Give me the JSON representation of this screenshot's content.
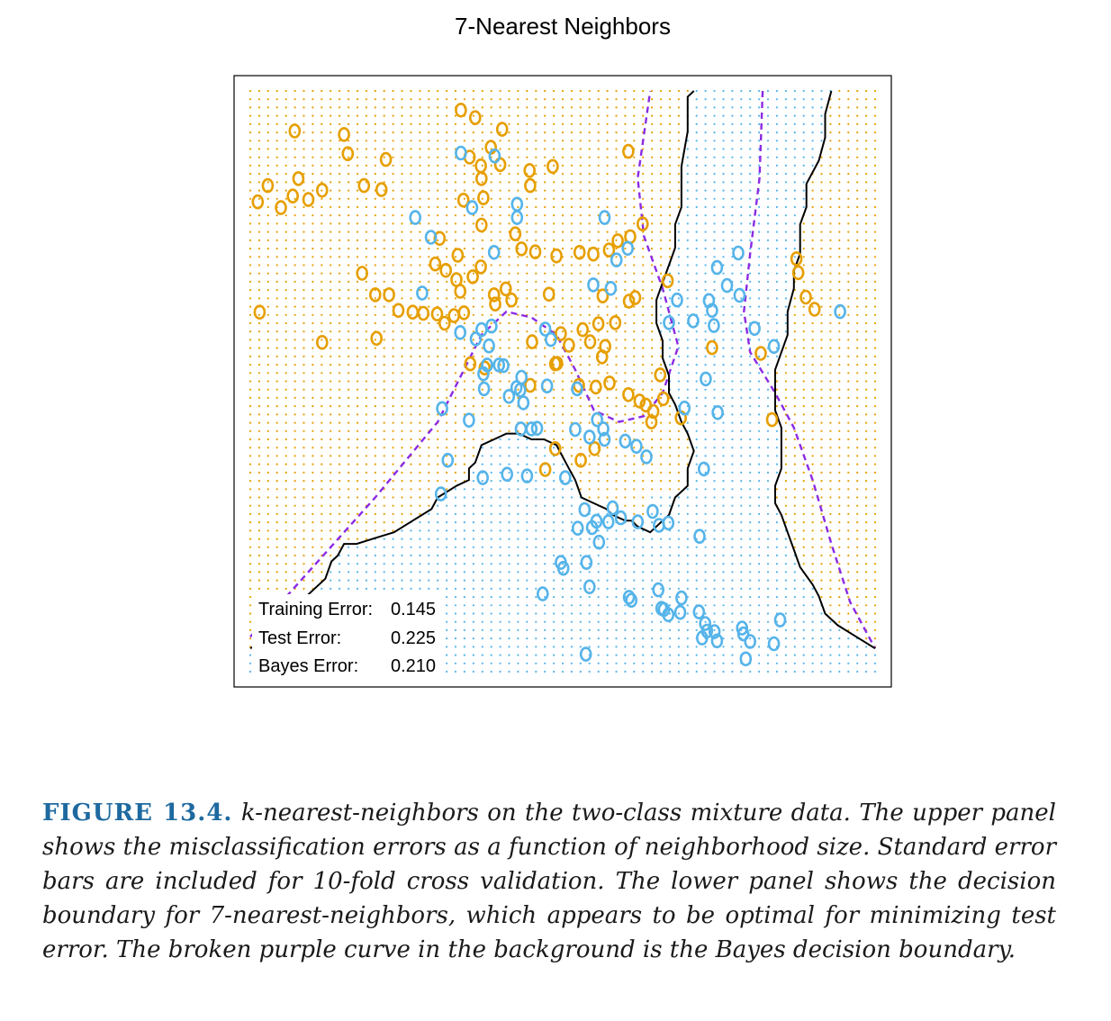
{
  "chart_data": {
    "type": "scatter",
    "title": "7-Nearest Neighbors",
    "xlabel": "",
    "ylabel": "",
    "classes": [
      {
        "name": "orange",
        "color": "#E69F00"
      },
      {
        "name": "blue",
        "color": "#56B4E9"
      }
    ],
    "bayes_boundary_color": "#8A2BE2",
    "knn_boundary_color": "#000000",
    "grid_shading": "class-colored dot grid",
    "points": [
      {
        "x": 0.077,
        "y": 0.849,
        "c": 0
      },
      {
        "x": 0.049,
        "y": 0.799,
        "c": 0
      },
      {
        "x": 0.012,
        "y": 0.809,
        "c": 0
      },
      {
        "x": 0.068,
        "y": 0.819,
        "c": 0
      },
      {
        "x": 0.093,
        "y": 0.813,
        "c": 0
      },
      {
        "x": 0.115,
        "y": 0.829,
        "c": 0
      },
      {
        "x": 0.028,
        "y": 0.837,
        "c": 0
      },
      {
        "x": 0.071,
        "y": 0.931,
        "c": 0
      },
      {
        "x": 0.15,
        "y": 0.925,
        "c": 0
      },
      {
        "x": 0.156,
        "y": 0.892,
        "c": 0
      },
      {
        "x": 0.217,
        "y": 0.882,
        "c": 0
      },
      {
        "x": 0.21,
        "y": 0.83,
        "c": 0
      },
      {
        "x": 0.182,
        "y": 0.837,
        "c": 0
      },
      {
        "x": 0.015,
        "y": 0.619,
        "c": 0
      },
      {
        "x": 0.115,
        "y": 0.567,
        "c": 0
      },
      {
        "x": 0.202,
        "y": 0.574,
        "c": 0
      },
      {
        "x": 0.2,
        "y": 0.649,
        "c": 0
      },
      {
        "x": 0.179,
        "y": 0.686,
        "c": 0
      },
      {
        "x": 0.337,
        "y": 0.967,
        "c": 0
      },
      {
        "x": 0.36,
        "y": 0.954,
        "c": 0
      },
      {
        "x": 0.403,
        "y": 0.934,
        "c": 0
      },
      {
        "x": 0.385,
        "y": 0.903,
        "c": 0
      },
      {
        "x": 0.351,
        "y": 0.886,
        "c": 0
      },
      {
        "x": 0.369,
        "y": 0.871,
        "c": 0
      },
      {
        "x": 0.4,
        "y": 0.873,
        "c": 0
      },
      {
        "x": 0.37,
        "y": 0.849,
        "c": 0
      },
      {
        "x": 0.447,
        "y": 0.863,
        "c": 0
      },
      {
        "x": 0.484,
        "y": 0.87,
        "c": 0
      },
      {
        "x": 0.448,
        "y": 0.837,
        "c": 0
      },
      {
        "x": 0.341,
        "y": 0.812,
        "c": 0
      },
      {
        "x": 0.373,
        "y": 0.816,
        "c": 0
      },
      {
        "x": 0.605,
        "y": 0.896,
        "c": 0
      },
      {
        "x": 0.37,
        "y": 0.769,
        "c": 0
      },
      {
        "x": 0.303,
        "y": 0.746,
        "c": 0
      },
      {
        "x": 0.424,
        "y": 0.754,
        "c": 0
      },
      {
        "x": 0.434,
        "y": 0.728,
        "c": 0
      },
      {
        "x": 0.456,
        "y": 0.723,
        "c": 0
      },
      {
        "x": 0.49,
        "y": 0.716,
        "c": 0
      },
      {
        "x": 0.527,
        "y": 0.722,
        "c": 0
      },
      {
        "x": 0.549,
        "y": 0.719,
        "c": 0
      },
      {
        "x": 0.574,
        "y": 0.726,
        "c": 0
      },
      {
        "x": 0.588,
        "y": 0.742,
        "c": 0
      },
      {
        "x": 0.608,
        "y": 0.749,
        "c": 0
      },
      {
        "x": 0.628,
        "y": 0.771,
        "c": 0
      },
      {
        "x": 0.332,
        "y": 0.717,
        "c": 0
      },
      {
        "x": 0.369,
        "y": 0.697,
        "c": 0
      },
      {
        "x": 0.356,
        "y": 0.68,
        "c": 0
      },
      {
        "x": 0.33,
        "y": 0.675,
        "c": 0
      },
      {
        "x": 0.313,
        "y": 0.691,
        "c": 0
      },
      {
        "x": 0.296,
        "y": 0.702,
        "c": 0
      },
      {
        "x": 0.336,
        "y": 0.655,
        "c": 0
      },
      {
        "x": 0.39,
        "y": 0.649,
        "c": 0
      },
      {
        "x": 0.409,
        "y": 0.659,
        "c": 0
      },
      {
        "x": 0.418,
        "y": 0.64,
        "c": 0
      },
      {
        "x": 0.392,
        "y": 0.633,
        "c": 0
      },
      {
        "x": 0.478,
        "y": 0.65,
        "c": 0
      },
      {
        "x": 0.564,
        "y": 0.647,
        "c": 0
      },
      {
        "x": 0.606,
        "y": 0.638,
        "c": 0
      },
      {
        "x": 0.616,
        "y": 0.644,
        "c": 0
      },
      {
        "x": 0.668,
        "y": 0.673,
        "c": 0
      },
      {
        "x": 0.222,
        "y": 0.649,
        "c": 0
      },
      {
        "x": 0.237,
        "y": 0.622,
        "c": 0
      },
      {
        "x": 0.26,
        "y": 0.619,
        "c": 0
      },
      {
        "x": 0.277,
        "y": 0.617,
        "c": 0
      },
      {
        "x": 0.299,
        "y": 0.616,
        "c": 0
      },
      {
        "x": 0.326,
        "y": 0.613,
        "c": 0
      },
      {
        "x": 0.342,
        "y": 0.618,
        "c": 0
      },
      {
        "x": 0.311,
        "y": 0.6,
        "c": 0
      },
      {
        "x": 0.352,
        "y": 0.53,
        "c": 0
      },
      {
        "x": 0.375,
        "y": 0.523,
        "c": 0
      },
      {
        "x": 0.451,
        "y": 0.568,
        "c": 0
      },
      {
        "x": 0.532,
        "y": 0.589,
        "c": 0
      },
      {
        "x": 0.557,
        "y": 0.599,
        "c": 0
      },
      {
        "x": 0.584,
        "y": 0.601,
        "c": 0
      },
      {
        "x": 0.568,
        "y": 0.56,
        "c": 0
      },
      {
        "x": 0.544,
        "y": 0.568,
        "c": 0
      },
      {
        "x": 0.51,
        "y": 0.562,
        "c": 0
      },
      {
        "x": 0.497,
        "y": 0.582,
        "c": 0
      },
      {
        "x": 0.488,
        "y": 0.53,
        "c": 0
      },
      {
        "x": 0.448,
        "y": 0.493,
        "c": 0
      },
      {
        "x": 0.491,
        "y": 0.531,
        "c": 0
      },
      {
        "x": 0.563,
        "y": 0.542,
        "c": 0
      },
      {
        "x": 0.575,
        "y": 0.497,
        "c": 0
      },
      {
        "x": 0.605,
        "y": 0.477,
        "c": 0
      },
      {
        "x": 0.623,
        "y": 0.466,
        "c": 0
      },
      {
        "x": 0.656,
        "y": 0.511,
        "c": 0
      },
      {
        "x": 0.661,
        "y": 0.47,
        "c": 0
      },
      {
        "x": 0.645,
        "y": 0.448,
        "c": 0
      },
      {
        "x": 0.633,
        "y": 0.459,
        "c": 0
      },
      {
        "x": 0.553,
        "y": 0.49,
        "c": 0
      },
      {
        "x": 0.526,
        "y": 0.493,
        "c": 0
      },
      {
        "x": 0.642,
        "y": 0.43,
        "c": 0
      },
      {
        "x": 0.689,
        "y": 0.437,
        "c": 0
      },
      {
        "x": 0.739,
        "y": 0.558,
        "c": 0
      },
      {
        "x": 0.551,
        "y": 0.384,
        "c": 0
      },
      {
        "x": 0.529,
        "y": 0.364,
        "c": 0
      },
      {
        "x": 0.488,
        "y": 0.384,
        "c": 0
      },
      {
        "x": 0.472,
        "y": 0.348,
        "c": 0
      },
      {
        "x": 0.835,
        "y": 0.434,
        "c": 0
      },
      {
        "x": 0.817,
        "y": 0.548,
        "c": 0
      },
      {
        "x": 0.874,
        "y": 0.711,
        "c": 0
      },
      {
        "x": 0.877,
        "y": 0.687,
        "c": 0
      },
      {
        "x": 0.889,
        "y": 0.645,
        "c": 0
      },
      {
        "x": 0.903,
        "y": 0.624,
        "c": 0
      },
      {
        "x": 0.337,
        "y": 0.893,
        "c": 1
      },
      {
        "x": 0.391,
        "y": 0.888,
        "c": 1
      },
      {
        "x": 0.427,
        "y": 0.805,
        "c": 1
      },
      {
        "x": 0.355,
        "y": 0.799,
        "c": 1
      },
      {
        "x": 0.264,
        "y": 0.782,
        "c": 1
      },
      {
        "x": 0.289,
        "y": 0.748,
        "c": 1
      },
      {
        "x": 0.39,
        "y": 0.722,
        "c": 1
      },
      {
        "x": 0.427,
        "y": 0.782,
        "c": 1
      },
      {
        "x": 0.567,
        "y": 0.782,
        "c": 1
      },
      {
        "x": 0.604,
        "y": 0.729,
        "c": 1
      },
      {
        "x": 0.781,
        "y": 0.721,
        "c": 1
      },
      {
        "x": 0.747,
        "y": 0.696,
        "c": 1
      },
      {
        "x": 0.763,
        "y": 0.665,
        "c": 1
      },
      {
        "x": 0.783,
        "y": 0.648,
        "c": 1
      },
      {
        "x": 0.734,
        "y": 0.639,
        "c": 1
      },
      {
        "x": 0.683,
        "y": 0.64,
        "c": 1
      },
      {
        "x": 0.739,
        "y": 0.622,
        "c": 1
      },
      {
        "x": 0.67,
        "y": 0.601,
        "c": 1
      },
      {
        "x": 0.709,
        "y": 0.604,
        "c": 1
      },
      {
        "x": 0.742,
        "y": 0.596,
        "c": 1
      },
      {
        "x": 0.807,
        "y": 0.591,
        "c": 1
      },
      {
        "x": 0.838,
        "y": 0.56,
        "c": 1
      },
      {
        "x": 0.944,
        "y": 0.62,
        "c": 1
      },
      {
        "x": 0.577,
        "y": 0.66,
        "c": 1
      },
      {
        "x": 0.549,
        "y": 0.666,
        "c": 1
      },
      {
        "x": 0.586,
        "y": 0.709,
        "c": 1
      },
      {
        "x": 0.275,
        "y": 0.652,
        "c": 1
      },
      {
        "x": 0.336,
        "y": 0.584,
        "c": 1
      },
      {
        "x": 0.37,
        "y": 0.589,
        "c": 1
      },
      {
        "x": 0.386,
        "y": 0.595,
        "c": 1
      },
      {
        "x": 0.361,
        "y": 0.573,
        "c": 1
      },
      {
        "x": 0.382,
        "y": 0.561,
        "c": 1
      },
      {
        "x": 0.472,
        "y": 0.59,
        "c": 1
      },
      {
        "x": 0.481,
        "y": 0.572,
        "c": 1
      },
      {
        "x": 0.373,
        "y": 0.513,
        "c": 1
      },
      {
        "x": 0.379,
        "y": 0.528,
        "c": 1
      },
      {
        "x": 0.398,
        "y": 0.528,
        "c": 1
      },
      {
        "x": 0.405,
        "y": 0.527,
        "c": 1
      },
      {
        "x": 0.434,
        "y": 0.507,
        "c": 1
      },
      {
        "x": 0.426,
        "y": 0.489,
        "c": 1
      },
      {
        "x": 0.414,
        "y": 0.474,
        "c": 1
      },
      {
        "x": 0.432,
        "y": 0.485,
        "c": 1
      },
      {
        "x": 0.437,
        "y": 0.463,
        "c": 1
      },
      {
        "x": 0.374,
        "y": 0.487,
        "c": 1
      },
      {
        "x": 0.475,
        "y": 0.492,
        "c": 1
      },
      {
        "x": 0.523,
        "y": 0.487,
        "c": 1
      },
      {
        "x": 0.307,
        "y": 0.453,
        "c": 1
      },
      {
        "x": 0.35,
        "y": 0.433,
        "c": 1
      },
      {
        "x": 0.433,
        "y": 0.418,
        "c": 1
      },
      {
        "x": 0.45,
        "y": 0.418,
        "c": 1
      },
      {
        "x": 0.459,
        "y": 0.419,
        "c": 1
      },
      {
        "x": 0.52,
        "y": 0.417,
        "c": 1
      },
      {
        "x": 0.543,
        "y": 0.404,
        "c": 1
      },
      {
        "x": 0.567,
        "y": 0.4,
        "c": 1
      },
      {
        "x": 0.6,
        "y": 0.397,
        "c": 1
      },
      {
        "x": 0.555,
        "y": 0.434,
        "c": 1
      },
      {
        "x": 0.565,
        "y": 0.418,
        "c": 1
      },
      {
        "x": 0.618,
        "y": 0.388,
        "c": 1
      },
      {
        "x": 0.634,
        "y": 0.37,
        "c": 1
      },
      {
        "x": 0.316,
        "y": 0.364,
        "c": 1
      },
      {
        "x": 0.372,
        "y": 0.334,
        "c": 1
      },
      {
        "x": 0.411,
        "y": 0.34,
        "c": 1
      },
      {
        "x": 0.443,
        "y": 0.337,
        "c": 1
      },
      {
        "x": 0.504,
        "y": 0.334,
        "c": 1
      },
      {
        "x": 0.695,
        "y": 0.454,
        "c": 1
      },
      {
        "x": 0.748,
        "y": 0.446,
        "c": 1
      },
      {
        "x": 0.729,
        "y": 0.504,
        "c": 1
      },
      {
        "x": 0.726,
        "y": 0.349,
        "c": 1
      },
      {
        "x": 0.305,
        "y": 0.306,
        "c": 1
      },
      {
        "x": 0.58,
        "y": 0.282,
        "c": 1
      },
      {
        "x": 0.593,
        "y": 0.265,
        "c": 1
      },
      {
        "x": 0.535,
        "y": 0.279,
        "c": 1
      },
      {
        "x": 0.554,
        "y": 0.259,
        "c": 1
      },
      {
        "x": 0.573,
        "y": 0.258,
        "c": 1
      },
      {
        "x": 0.524,
        "y": 0.247,
        "c": 1
      },
      {
        "x": 0.547,
        "y": 0.248,
        "c": 1
      },
      {
        "x": 0.558,
        "y": 0.223,
        "c": 1
      },
      {
        "x": 0.62,
        "y": 0.258,
        "c": 1
      },
      {
        "x": 0.644,
        "y": 0.276,
        "c": 1
      },
      {
        "x": 0.654,
        "y": 0.252,
        "c": 1
      },
      {
        "x": 0.669,
        "y": 0.256,
        "c": 1
      },
      {
        "x": 0.719,
        "y": 0.233,
        "c": 1
      },
      {
        "x": 0.538,
        "y": 0.188,
        "c": 1
      },
      {
        "x": 0.497,
        "y": 0.188,
        "c": 1
      },
      {
        "x": 0.501,
        "y": 0.178,
        "c": 1
      },
      {
        "x": 0.543,
        "y": 0.146,
        "c": 1
      },
      {
        "x": 0.468,
        "y": 0.134,
        "c": 1
      },
      {
        "x": 0.606,
        "y": 0.128,
        "c": 1
      },
      {
        "x": 0.653,
        "y": 0.141,
        "c": 1
      },
      {
        "x": 0.69,
        "y": 0.127,
        "c": 1
      },
      {
        "x": 0.61,
        "y": 0.123,
        "c": 1
      },
      {
        "x": 0.662,
        "y": 0.107,
        "c": 1
      },
      {
        "x": 0.718,
        "y": 0.103,
        "c": 1
      },
      {
        "x": 0.728,
        "y": 0.083,
        "c": 1
      },
      {
        "x": 0.743,
        "y": 0.069,
        "c": 1
      },
      {
        "x": 0.789,
        "y": 0.065,
        "c": 1
      },
      {
        "x": 0.793,
        "y": 0.022,
        "c": 1
      },
      {
        "x": 0.537,
        "y": 0.03,
        "c": 1
      },
      {
        "x": 0.747,
        "y": 0.053,
        "c": 1
      },
      {
        "x": 0.731,
        "y": 0.07,
        "c": 1
      },
      {
        "x": 0.669,
        "y": 0.098,
        "c": 1
      },
      {
        "x": 0.658,
        "y": 0.109,
        "c": 1
      },
      {
        "x": 0.688,
        "y": 0.102,
        "c": 1
      },
      {
        "x": 0.723,
        "y": 0.058,
        "c": 1
      },
      {
        "x": 0.787,
        "y": 0.075,
        "c": 1
      },
      {
        "x": 0.8,
        "y": 0.052,
        "c": 1
      },
      {
        "x": 0.838,
        "y": 0.048,
        "c": 1
      },
      {
        "x": 0.848,
        "y": 0.089,
        "c": 1
      }
    ]
  },
  "errors": [
    {
      "label": "Training Error:",
      "value": "0.145"
    },
    {
      "label": "Test Error:",
      "value": "0.225"
    },
    {
      "label": "Bayes Error:",
      "value": "0.210"
    }
  ],
  "caption": {
    "label": "FIGURE 13.4.",
    "text": "k-nearest-neighbors on the two-class mixture data. The upper panel shows the misclassification errors as a function of neighborhood size. Standard error bars are included for 10-fold cross validation. The lower panel shows the decision boundary for 7-nearest-neighbors, which appears to be optimal for minimizing test error. The broken purple curve in the background is the Bayes decision boundary."
  }
}
